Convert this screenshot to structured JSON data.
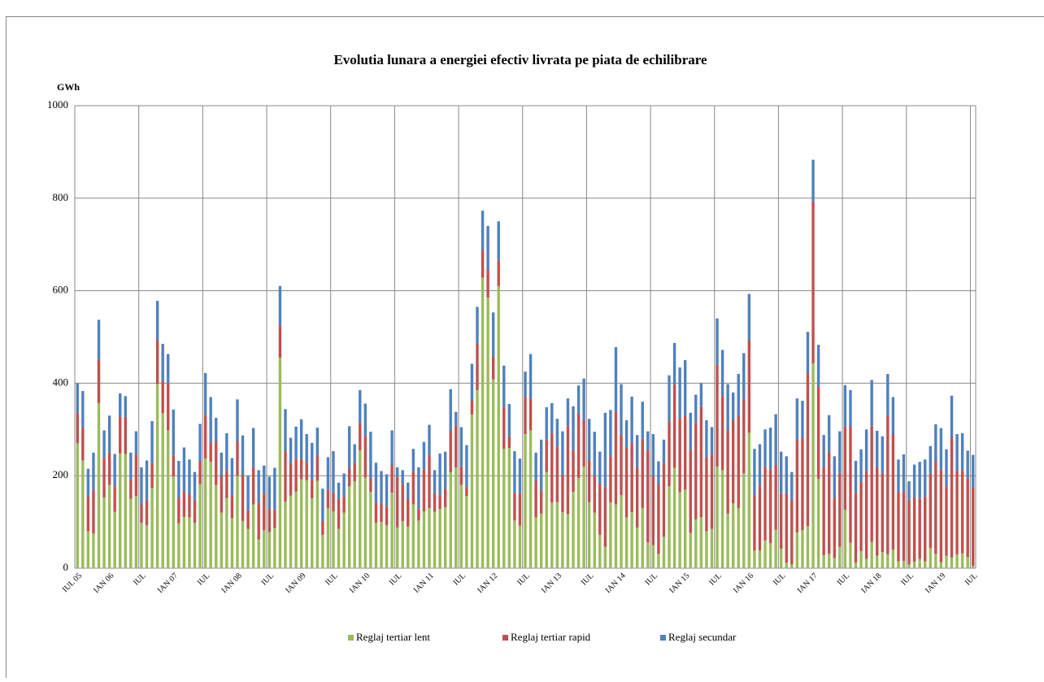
{
  "chart_data": {
    "type": "stacked-bar",
    "title": "Evolutia lunara a energiei efectiv livrata pe piata de echilibrare",
    "y_label": "GWh",
    "categories": [
      "IUL 05",
      null,
      null,
      null,
      null,
      null,
      "IAN 06",
      null,
      null,
      null,
      null,
      null,
      "IUL",
      null,
      null,
      null,
      null,
      null,
      "IAN 07",
      null,
      null,
      null,
      null,
      null,
      "IUL",
      null,
      null,
      null,
      null,
      null,
      "IAN 08",
      null,
      null,
      null,
      null,
      null,
      "IUL",
      null,
      null,
      null,
      null,
      null,
      "IAN 09",
      null,
      null,
      null,
      null,
      null,
      "IUL",
      null,
      null,
      null,
      null,
      null,
      "IAN 10",
      null,
      null,
      null,
      null,
      null,
      "IUL",
      null,
      null,
      null,
      null,
      null,
      "IAN 11",
      null,
      null,
      null,
      null,
      null,
      "IUL",
      null,
      null,
      null,
      null,
      null,
      "IAN 12",
      null,
      null,
      null,
      null,
      null,
      "IUL",
      null,
      null,
      null,
      null,
      null,
      "IAN 13",
      null,
      null,
      null,
      null,
      null,
      "IUL",
      null,
      null,
      null,
      null,
      null,
      "IAN 14",
      null,
      null,
      null,
      null,
      null,
      "IUL",
      null,
      null,
      null,
      null,
      null,
      "IAN 15",
      null,
      null,
      null,
      null,
      null,
      "IUL",
      null,
      null,
      null,
      null,
      null,
      "IAN 16",
      null,
      null,
      null,
      null,
      null,
      "IUL",
      null,
      null,
      null,
      null,
      null,
      "IAN 17",
      null,
      null,
      null,
      null,
      null,
      "IUL",
      null,
      null,
      null,
      null,
      null,
      "IAN 18",
      null,
      null,
      null,
      null,
      null,
      "IUL",
      null,
      null,
      null,
      null,
      null,
      "IAN 19",
      null,
      null,
      null,
      null,
      null,
      "IUL"
    ],
    "series": [
      {
        "name": "Reglaj tertiar lent",
        "color": "#9bbb59",
        "values": [
          270,
          233,
          80,
          75,
          357,
          153,
          180,
          122,
          248,
          247,
          150,
          156,
          98,
          93,
          173,
          398,
          335,
          298,
          198,
          97,
          111,
          110,
          98,
          182,
          237,
          230,
          180,
          120,
          152,
          108,
          200,
          102,
          85,
          138,
          62,
          82,
          78,
          87,
          455,
          144,
          157,
          166,
          192,
          190,
          151,
          189,
          72,
          130,
          123,
          85,
          120,
          177,
          188,
          255,
          196,
          165,
          98,
          100,
          93,
          163,
          88,
          102,
          90,
          138,
          103,
          123,
          130,
          122,
          128,
          132,
          207,
          218,
          180,
          156,
          332,
          385,
          628,
          585,
          408,
          610,
          258,
          260,
          103,
          92,
          290,
          298,
          110,
          118,
          208,
          142,
          143,
          121,
          117,
          165,
          195,
          220,
          143,
          120,
          72,
          46,
          142,
          138,
          158,
          110,
          121,
          88,
          130,
          56,
          50,
          31,
          68,
          177,
          217,
          164,
          170,
          76,
          105,
          110,
          80,
          85,
          220,
          212,
          118,
          140,
          130,
          205,
          293,
          38,
          38,
          60,
          54,
          83,
          42,
          12,
          8,
          77,
          82,
          91,
          443,
          193,
          28,
          31,
          22,
          46,
          126,
          55,
          12,
          37,
          20,
          57,
          27,
          35,
          30,
          40,
          15,
          16,
          8,
          14,
          20,
          15,
          44,
          31,
          13,
          27,
          23,
          30,
          32,
          24,
          5
        ]
      },
      {
        "name": "Reglaj tertiar rapid",
        "color": "#c0504d",
        "values": [
          65,
          70,
          75,
          95,
          95,
          85,
          70,
          55,
          80,
          80,
          40,
          90,
          40,
          55,
          55,
          95,
          70,
          100,
          45,
          55,
          55,
          50,
          50,
          50,
          95,
          40,
          95,
          80,
          60,
          50,
          75,
          100,
          40,
          80,
          80,
          80,
          50,
          40,
          70,
          110,
          70,
          70,
          45,
          40,
          40,
          55,
          30,
          40,
          40,
          65,
          35,
          40,
          40,
          60,
          90,
          30,
          45,
          40,
          40,
          60,
          110,
          80,
          60,
          70,
          25,
          90,
          115,
          40,
          30,
          40,
          90,
          90,
          40,
          20,
          30,
          100,
          60,
          60,
          50,
          55,
          90,
          25,
          60,
          70,
          80,
          70,
          80,
          50,
          70,
          150,
          120,
          80,
          190,
          90,
          140,
          100,
          90,
          80,
          110,
          130,
          100,
          200,
          130,
          150,
          150,
          130,
          150,
          200,
          150,
          150,
          160,
          140,
          180,
          160,
          160,
          180,
          210,
          240,
          160,
          160,
          220,
          160,
          180,
          180,
          200,
          160,
          200,
          120,
          140,
          160,
          160,
          140,
          120,
          150,
          140,
          200,
          200,
          330,
          350,
          200,
          190,
          220,
          130,
          160,
          180,
          250,
          150,
          150,
          190,
          250,
          190,
          170,
          300,
          250,
          150,
          150,
          140,
          140,
          130,
          140,
          160,
          200,
          200,
          150,
          260,
          180,
          180,
          170,
          170
        ]
      },
      {
        "name": "Reglaj secundar",
        "color": "#4f81bd",
        "values": [
          65,
          80,
          60,
          80,
          85,
          60,
          80,
          70,
          50,
          45,
          60,
          50,
          80,
          85,
          90,
          85,
          80,
          65,
          100,
          80,
          95,
          75,
          60,
          80,
          90,
          100,
          50,
          50,
          80,
          80,
          90,
          85,
          75,
          85,
          70,
          60,
          70,
          90,
          85,
          90,
          55,
          70,
          85,
          60,
          80,
          60,
          70,
          70,
          90,
          35,
          50,
          90,
          40,
          70,
          70,
          100,
          85,
          70,
          70,
          75,
          20,
          30,
          35,
          50,
          90,
          60,
          65,
          50,
          90,
          80,
          90,
          30,
          85,
          90,
          80,
          80,
          85,
          95,
          95,
          85,
          90,
          70,
          90,
          75,
          55,
          95,
          60,
          110,
          70,
          65,
          60,
          95,
          60,
          95,
          60,
          90,
          90,
          95,
          70,
          160,
          100,
          140,
          110,
          60,
          100,
          70,
          80,
          40,
          90,
          50,
          50,
          100,
          90,
          110,
          120,
          80,
          60,
          50,
          80,
          60,
          100,
          100,
          100,
          60,
          90,
          100,
          100,
          100,
          90,
          80,
          90,
          110,
          90,
          80,
          60,
          90,
          80,
          90,
          90,
          90,
          70,
          80,
          90,
          90,
          90,
          80,
          70,
          70,
          90,
          100,
          80,
          80,
          90,
          80,
          70,
          80,
          40,
          70,
          80,
          80,
          60,
          80,
          90,
          80,
          90,
          80,
          80,
          60,
          70
        ]
      }
    ],
    "ylim": [
      0,
      1000
    ],
    "yticks": [
      0,
      200,
      400,
      600,
      800,
      1000
    ],
    "grid": true,
    "legend": "bottom"
  }
}
